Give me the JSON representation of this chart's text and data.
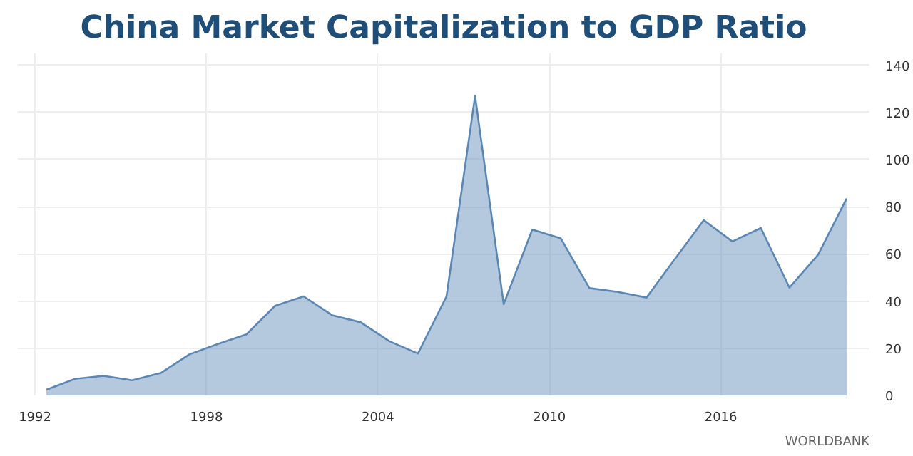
{
  "chart_data": {
    "type": "area",
    "title": "China Market Capitalization to GDP Ratio",
    "x": [
      1992.4,
      1993.4,
      1994.4,
      1995.4,
      1996.4,
      1997.4,
      1998.4,
      1999.4,
      2000.4,
      2001.4,
      2002.4,
      2003.4,
      2004.4,
      2005.4,
      2006.4,
      2007.4,
      2008.4,
      2009.4,
      2010.4,
      2011.4,
      2012.4,
      2013.4,
      2014.4,
      2015.4,
      2016.4,
      2017.4,
      2018.4,
      2019.4,
      2020.4
    ],
    "series": [
      {
        "color": "#5b87b5",
        "values": [
          2.4,
          7,
          8.3,
          6.4,
          9.5,
          17.4,
          21.8,
          25.9,
          38,
          42,
          34,
          31,
          23,
          17.8,
          42,
          127,
          38.7,
          70.3,
          66.6,
          45.5,
          43.9,
          41.5,
          58,
          74.3,
          65.3,
          71,
          45.7,
          59.6,
          83.5
        ]
      }
    ],
    "xlim": [
      1991.4,
      2021.2
    ],
    "xticks": [
      1992,
      1998,
      2004,
      2010,
      2016
    ],
    "ylim": [
      0,
      145
    ],
    "yticks": [
      0,
      20,
      40,
      60,
      80,
      100,
      120,
      140
    ],
    "grid": true,
    "annotations": [
      "WORLDBANK"
    ]
  }
}
